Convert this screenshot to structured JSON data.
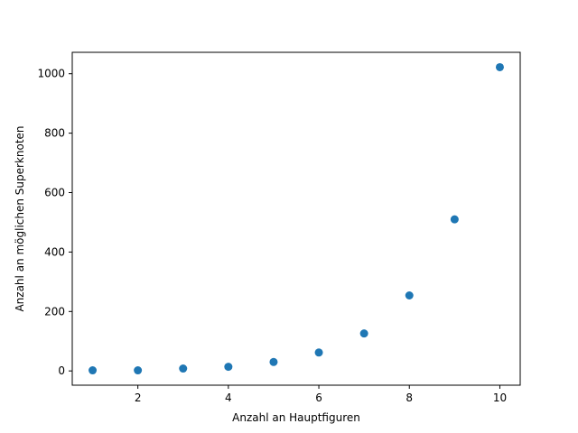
{
  "chart_data": {
    "type": "scatter",
    "title": "",
    "xlabel": "Anzahl an Hauptfiguren",
    "ylabel": "Anzahl an möglichen Superknoten",
    "x": [
      1,
      2,
      3,
      4,
      5,
      6,
      7,
      8,
      9,
      10
    ],
    "y": [
      2,
      2,
      8,
      14,
      30,
      62,
      126,
      254,
      510,
      1022
    ],
    "xlim": [
      0.55,
      10.45
    ],
    "ylim": [
      -48,
      1072
    ],
    "xticks": [
      2,
      4,
      6,
      8,
      10
    ],
    "yticks": [
      0,
      200,
      400,
      600,
      800,
      1000
    ],
    "xtick_labels": [
      "2",
      "4",
      "6",
      "8",
      "10"
    ],
    "ytick_labels": [
      "0",
      "200",
      "400",
      "600",
      "800",
      "1000"
    ],
    "grid": false,
    "marker_color": "#1f77b4"
  }
}
